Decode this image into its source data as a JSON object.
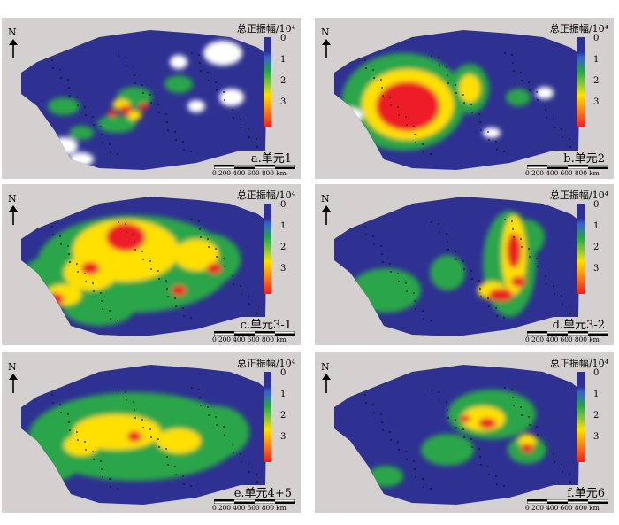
{
  "north_label": "N",
  "legend": {
    "title": "总正振幅/10⁴",
    "ticks": [
      "0",
      "1",
      "2",
      "3"
    ]
  },
  "scale_text": "0  200 400 600 800 km",
  "panels": [
    {
      "label": "a.单元1",
      "level": "low"
    },
    {
      "label": "b.单元2",
      "level": "high-center"
    },
    {
      "label": "c.单元3-1",
      "level": "high"
    },
    {
      "label": "d.单元3-2",
      "level": "medium-east"
    },
    {
      "label": "e.单元4+5",
      "level": "medium"
    },
    {
      "label": "f.单元6",
      "level": "medium-low"
    }
  ],
  "colors": {
    "background": "#d4d0cf",
    "low": "#2e3192",
    "mid_low": "#2aa548",
    "mid": "#8cc63f",
    "mid_high": "#ffe000",
    "high": "#ee1c25"
  }
}
